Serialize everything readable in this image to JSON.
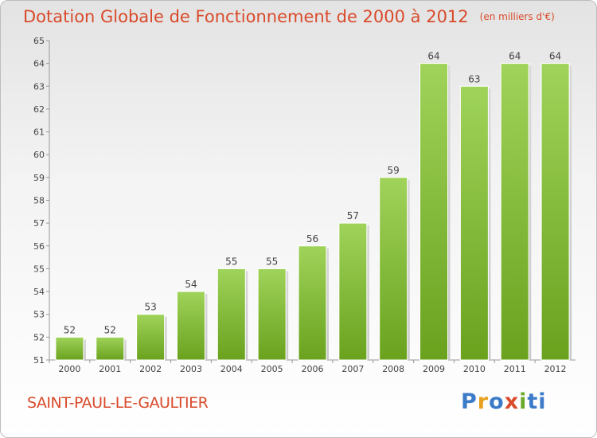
{
  "chart_data": {
    "type": "bar",
    "title": "Dotation Globale de Fonctionnement de 2000 à 2012",
    "unit_label": "(en milliers d'€)",
    "categories": [
      "2000",
      "2001",
      "2002",
      "2003",
      "2004",
      "2005",
      "2006",
      "2007",
      "2008",
      "2009",
      "2010",
      "2011",
      "2012"
    ],
    "values": [
      52,
      52,
      53,
      54,
      55,
      55,
      56,
      57,
      59,
      64,
      63,
      64,
      64
    ],
    "ylim": [
      51,
      65
    ],
    "yticks": [
      51,
      52,
      53,
      54,
      55,
      56,
      57,
      58,
      59,
      60,
      61,
      62,
      63,
      64,
      65
    ],
    "grid": false,
    "bar_color_top": "#9fd35a",
    "bar_color_bottom": "#6aa21e"
  },
  "commune": "SAINT-PAUL-LE-GAULTIER",
  "logo": {
    "letters": [
      "P",
      "r",
      "o",
      "x",
      "i",
      "ti"
    ]
  }
}
